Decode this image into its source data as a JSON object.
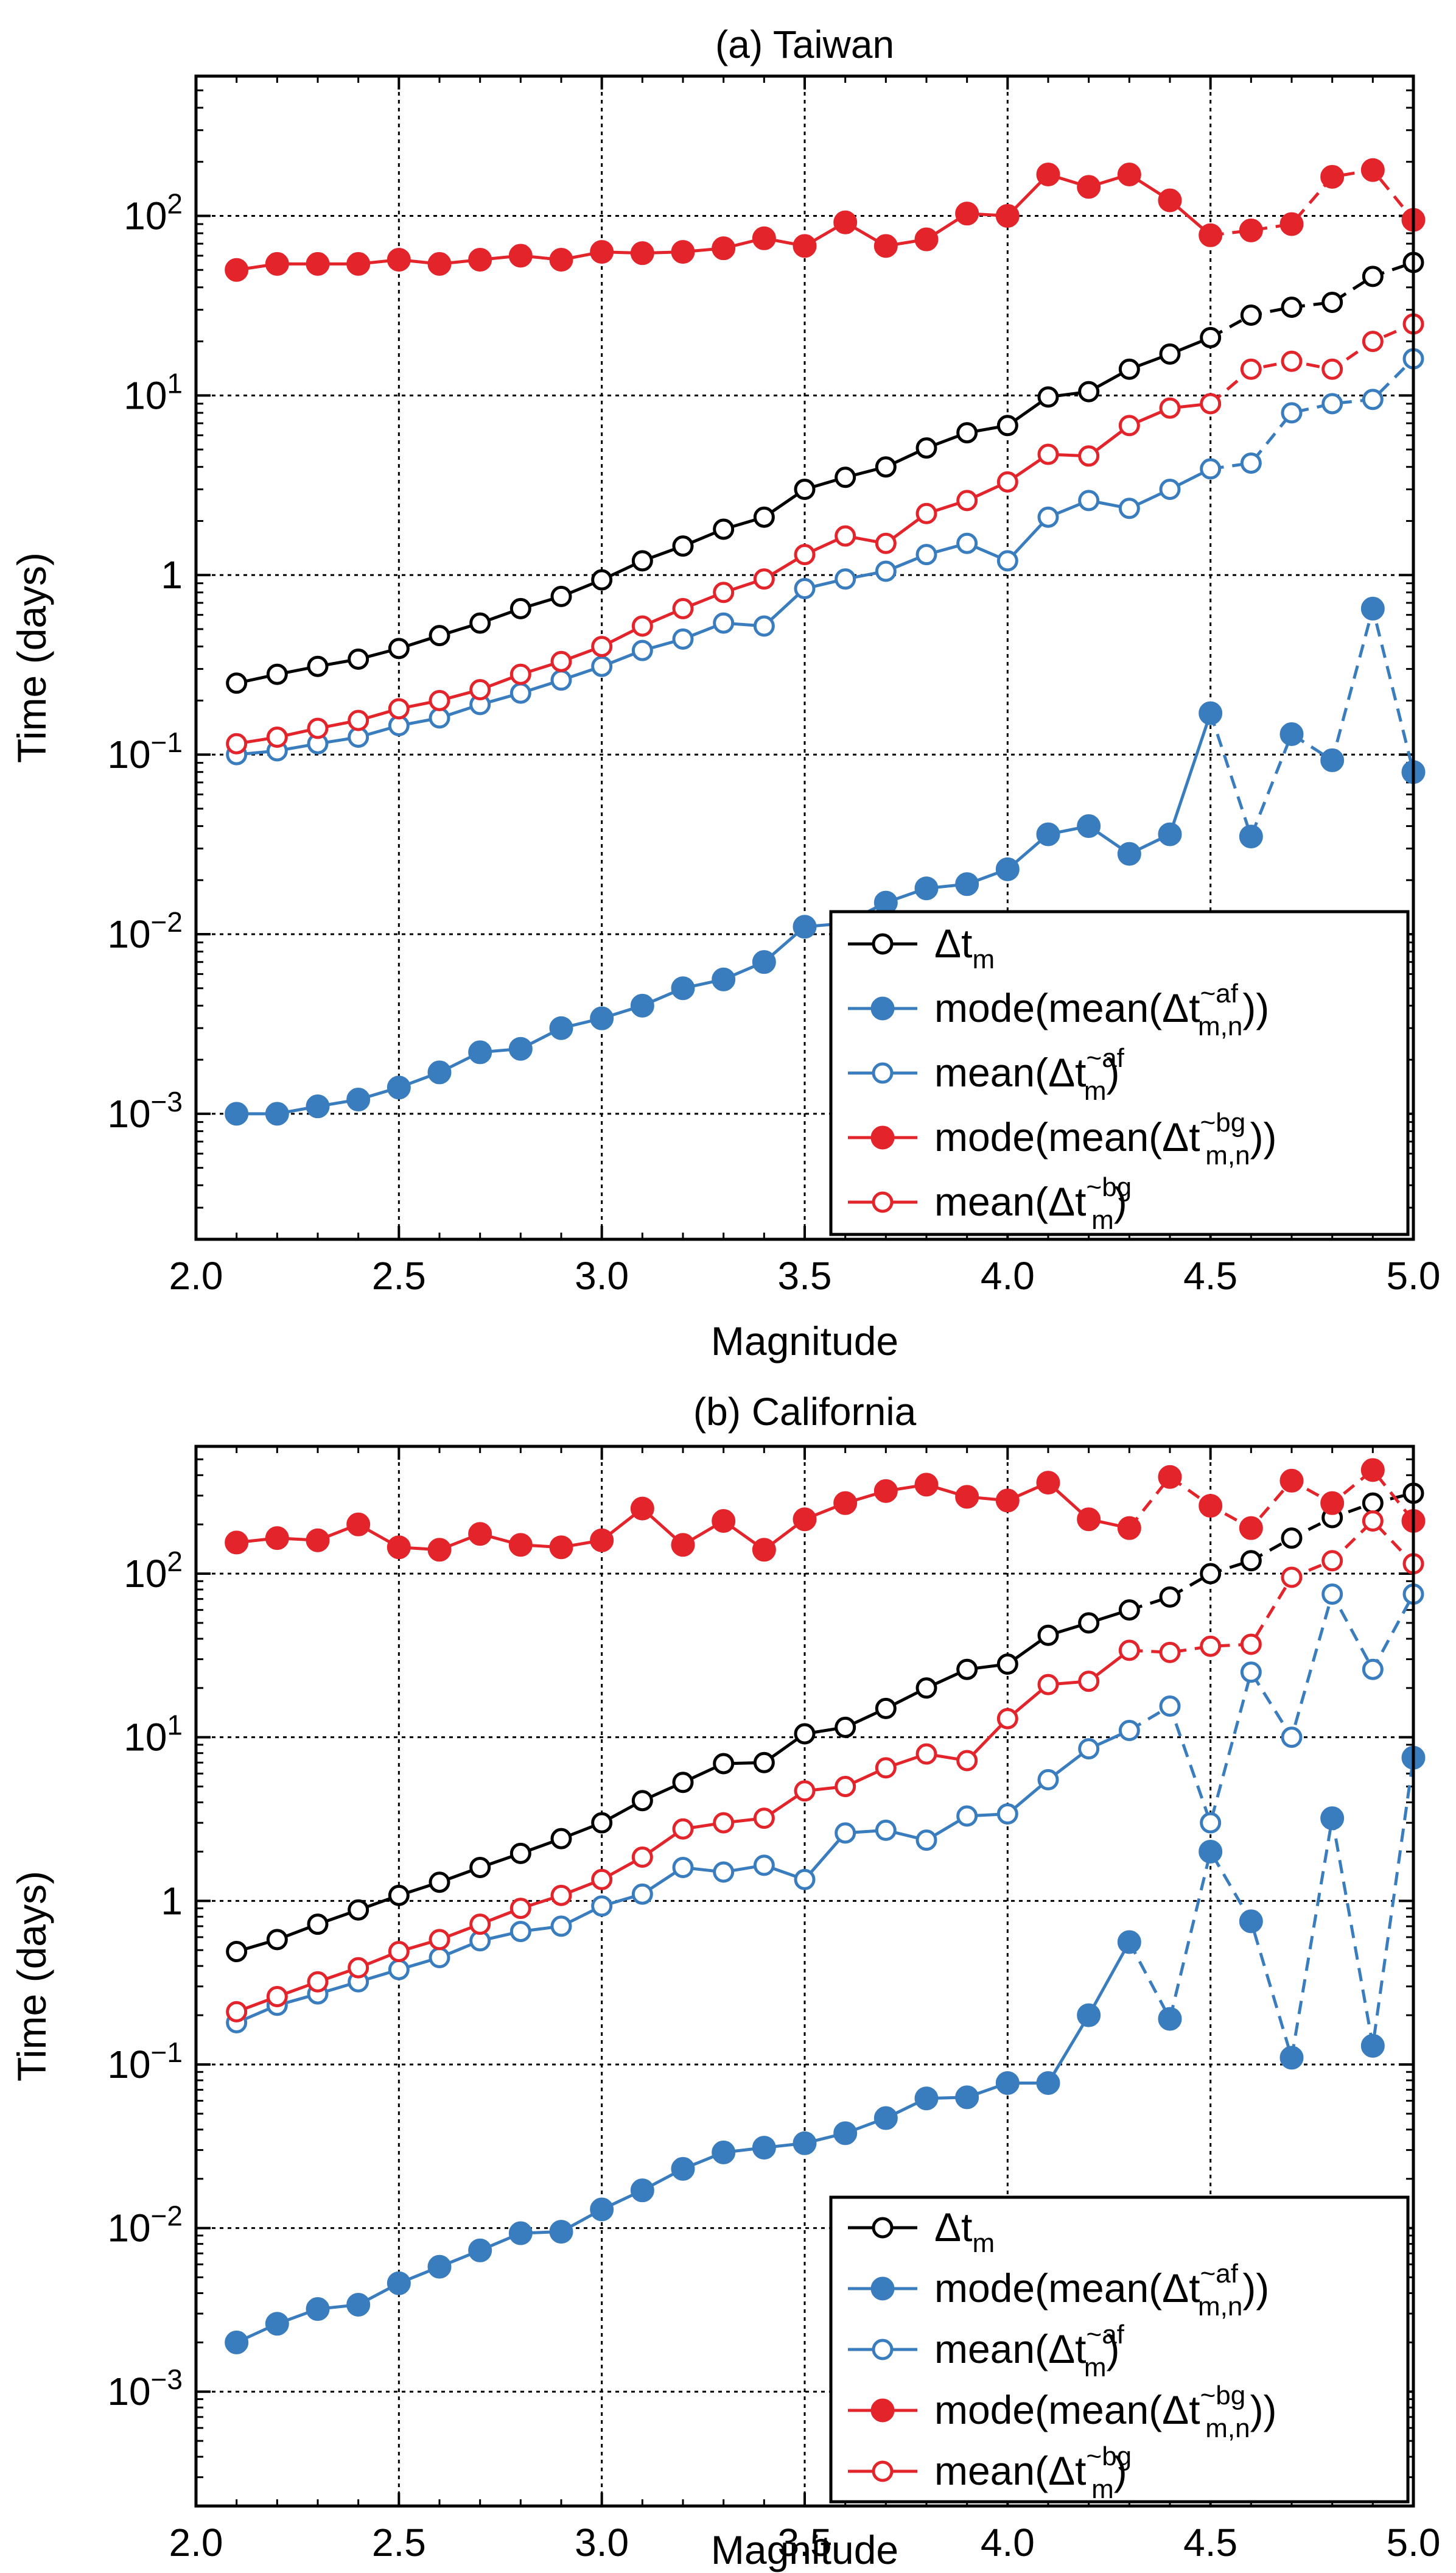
{
  "chart_data": [
    {
      "type": "line",
      "title": "(a) Taiwan",
      "xlabel": "Magnitude",
      "ylabel": "Time (days)",
      "yscale": "log",
      "xlim": [
        2.0,
        5.0
      ],
      "ylim": [
        0.0002,
        600
      ],
      "grid": true,
      "legend_position": "lower-right",
      "x_ticks": [
        "2.0",
        "2.5",
        "3.0",
        "3.5",
        "4.0",
        "4.5",
        "5.0"
      ],
      "y_ticks": [
        {
          "base": "10",
          "exp": "-3"
        },
        {
          "base": "10",
          "exp": "-2"
        },
        {
          "base": "10",
          "exp": "-1"
        },
        {
          "base": "1",
          "exp": ""
        },
        {
          "base": "10",
          "exp": "1"
        },
        {
          "base": "10",
          "exp": "2"
        }
      ],
      "x": [
        2.1,
        2.2,
        2.3,
        2.4,
        2.5,
        2.6,
        2.7,
        2.8,
        2.9,
        3.0,
        3.1,
        3.2,
        3.3,
        3.4,
        3.5,
        3.6,
        3.7,
        3.8,
        3.9,
        4.0,
        4.1,
        4.2,
        4.3,
        4.4,
        4.5,
        4.6,
        4.7,
        4.8,
        4.9,
        5.0
      ],
      "dashed_from": 4.5,
      "series": [
        {
          "name": "Δt_m",
          "color": "#000000",
          "filled": false,
          "values": [
            0.25,
            0.28,
            0.31,
            0.34,
            0.39,
            0.46,
            0.54,
            0.65,
            0.76,
            0.94,
            1.2,
            1.45,
            1.8,
            2.1,
            3.0,
            3.5,
            4.0,
            5.1,
            6.2,
            6.8,
            9.8,
            10.5,
            14.0,
            17.0,
            21.0,
            28.0,
            31.0,
            33.0,
            46.0,
            55.0
          ]
        },
        {
          "name": "mode(mean(Δt~af m,n))",
          "color": "#3a7dbf",
          "filled": true,
          "values": [
            0.001,
            0.001,
            0.0011,
            0.0012,
            0.0014,
            0.0017,
            0.0022,
            0.0023,
            0.003,
            0.0034,
            0.004,
            0.005,
            0.0056,
            0.007,
            0.011,
            0.0115,
            0.015,
            0.018,
            0.019,
            0.023,
            0.036,
            0.04,
            0.028,
            0.036,
            0.17,
            0.035,
            0.13,
            0.093,
            0.65,
            0.08
          ]
        },
        {
          "name": "mean(Δt~af m)",
          "color": "#3a7dbf",
          "filled": false,
          "values": [
            0.1,
            0.105,
            0.115,
            0.125,
            0.145,
            0.16,
            0.19,
            0.22,
            0.26,
            0.31,
            0.38,
            0.44,
            0.54,
            0.52,
            0.84,
            0.95,
            1.05,
            1.3,
            1.5,
            1.2,
            2.1,
            2.6,
            2.35,
            3.0,
            3.9,
            4.2,
            8.0,
            9.0,
            9.5,
            16.0
          ]
        },
        {
          "name": "mode(mean(Δt~bg m,n))",
          "color": "#e3242b",
          "filled": true,
          "values": [
            50,
            54,
            54,
            54,
            57,
            54,
            57,
            60,
            57,
            63,
            62,
            63,
            66,
            75,
            68,
            92,
            68,
            74,
            103,
            100,
            170,
            145,
            170,
            122,
            78,
            83,
            90,
            165,
            180,
            95
          ]
        },
        {
          "name": "mean(Δt~bg m)",
          "color": "#e3242b",
          "filled": false,
          "values": [
            0.115,
            0.125,
            0.14,
            0.155,
            0.18,
            0.2,
            0.23,
            0.28,
            0.33,
            0.4,
            0.52,
            0.65,
            0.8,
            0.95,
            1.3,
            1.65,
            1.5,
            2.2,
            2.6,
            3.3,
            4.7,
            4.6,
            6.8,
            8.5,
            9.0,
            14.0,
            15.5,
            14.0,
            20.0,
            25.0
          ]
        }
      ]
    },
    {
      "type": "line",
      "title": "(b) California",
      "xlabel": "Magnitude",
      "ylabel": "Time (days)",
      "yscale": "log",
      "xlim": [
        2.0,
        5.0
      ],
      "ylim": [
        0.0002,
        600
      ],
      "grid": true,
      "legend_position": "lower-right",
      "x_ticks": [
        "2.0",
        "2.5",
        "3.0",
        "3.5",
        "4.0",
        "4.5",
        "5.0"
      ],
      "y_ticks": [
        {
          "base": "10",
          "exp": "-3"
        },
        {
          "base": "10",
          "exp": "-2"
        },
        {
          "base": "10",
          "exp": "-1"
        },
        {
          "base": "1",
          "exp": ""
        },
        {
          "base": "10",
          "exp": "1"
        },
        {
          "base": "10",
          "exp": "2"
        }
      ],
      "x": [
        2.1,
        2.2,
        2.3,
        2.4,
        2.5,
        2.6,
        2.7,
        2.8,
        2.9,
        3.0,
        3.1,
        3.2,
        3.3,
        3.4,
        3.5,
        3.6,
        3.7,
        3.8,
        3.9,
        4.0,
        4.1,
        4.2,
        4.3,
        4.4,
        4.5,
        4.6,
        4.7,
        4.8,
        4.9,
        5.0
      ],
      "dashed_from": 4.3,
      "series": [
        {
          "name": "Δt_m",
          "color": "#000000",
          "filled": false,
          "values": [
            0.49,
            0.58,
            0.72,
            0.88,
            1.08,
            1.3,
            1.6,
            1.95,
            2.4,
            3.0,
            4.1,
            5.3,
            6.9,
            7.0,
            10.5,
            11.5,
            15.0,
            20.0,
            26.0,
            28.0,
            42.0,
            50.0,
            60.0,
            72.0,
            100.0,
            120.0,
            165.0,
            220.0,
            270.0,
            310.0
          ]
        },
        {
          "name": "mode(mean(Δt~af m,n))",
          "color": "#3a7dbf",
          "filled": true,
          "values": [
            0.002,
            0.0026,
            0.0032,
            0.0034,
            0.0046,
            0.0058,
            0.0073,
            0.0093,
            0.0095,
            0.013,
            0.017,
            0.023,
            0.029,
            0.031,
            0.033,
            0.038,
            0.047,
            0.062,
            0.063,
            0.077,
            0.077,
            0.2,
            0.56,
            0.19,
            2.0,
            0.75,
            0.11,
            3.2,
            0.13,
            7.5
          ]
        },
        {
          "name": "mean(Δt~af m)",
          "color": "#3a7dbf",
          "filled": false,
          "values": [
            0.18,
            0.23,
            0.27,
            0.32,
            0.38,
            0.45,
            0.57,
            0.65,
            0.7,
            0.93,
            1.1,
            1.6,
            1.5,
            1.65,
            1.35,
            2.6,
            2.7,
            2.35,
            3.3,
            3.4,
            5.5,
            8.5,
            11.0,
            15.5,
            3.0,
            25.0,
            10.0,
            75.0,
            26.0,
            75.0
          ]
        },
        {
          "name": "mode(mean(Δt~bg m,n))",
          "color": "#e3242b",
          "filled": true,
          "values": [
            155,
            165,
            160,
            200,
            145,
            140,
            175,
            150,
            145,
            160,
            250,
            150,
            210,
            140,
            215,
            270,
            320,
            350,
            295,
            280,
            360,
            215,
            190,
            390,
            260,
            190,
            370,
            270,
            430,
            210
          ]
        },
        {
          "name": "mean(Δt~bg m)",
          "color": "#e3242b",
          "filled": false,
          "values": [
            0.21,
            0.26,
            0.32,
            0.39,
            0.49,
            0.58,
            0.72,
            0.9,
            1.08,
            1.35,
            1.85,
            2.75,
            3.0,
            3.2,
            4.7,
            5.0,
            6.5,
            7.9,
            7.2,
            13.0,
            21.0,
            22.0,
            34.0,
            33.0,
            36.0,
            37.0,
            95.0,
            120.0,
            210.0,
            115.0
          ]
        }
      ]
    }
  ],
  "legend": [
    {
      "main": "Δt",
      "sub": "m",
      "sup": "",
      "close": ""
    },
    {
      "main": "mode(mean(Δt",
      "sub": "m,n",
      "sup": "~af",
      "close": "))"
    },
    {
      "main": "mean(Δt",
      "sub": "m",
      "sup": "~af",
      "close": ")"
    },
    {
      "main": "mode(mean(Δt",
      "sub": "m,n",
      "sup": "~bg",
      "close": "))"
    },
    {
      "main": "mean(Δt",
      "sub": "m",
      "sup": "~bg",
      "close": ")"
    }
  ]
}
